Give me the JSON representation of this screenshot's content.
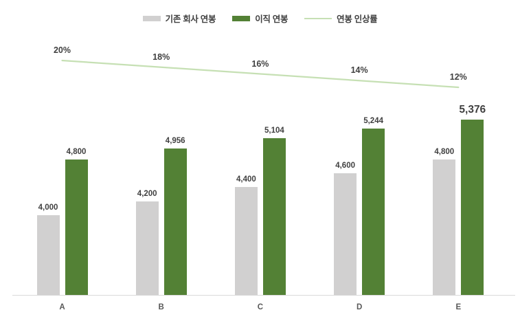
{
  "colors": {
    "current_salary_bar": "#d1d0d0",
    "new_salary_bar": "#538135",
    "increase_line": "#c6e0b4",
    "text": "#404040",
    "category_text": "#595959",
    "axis_line": "#d9d9d9",
    "background": "#ffffff"
  },
  "legend": {
    "position": "top",
    "items": [
      {
        "label": "기존 회사 연봉",
        "swatch": "bar",
        "color": "#d1d0d0"
      },
      {
        "label": "이직 연봉",
        "swatch": "bar",
        "color": "#538135"
      },
      {
        "label": "연봉 인상률",
        "swatch": "line",
        "color": "#c6e0b4"
      }
    ]
  },
  "chart_data": {
    "type": "bar",
    "title": "",
    "xlabel": "",
    "ylabel": "",
    "categories": [
      "A",
      "B",
      "C",
      "D",
      "E"
    ],
    "series": [
      {
        "name": "기존 회사 연봉",
        "type": "bar",
        "color": "#d1d0d0",
        "values": [
          4000,
          4200,
          4400,
          4600,
          4800
        ],
        "labels": [
          "4,000",
          "4,200",
          "4,400",
          "4,600",
          "4,800"
        ]
      },
      {
        "name": "이직 연봉",
        "type": "bar",
        "color": "#538135",
        "values": [
          4800,
          4956,
          5104,
          5244,
          5376
        ],
        "labels": [
          "4,800",
          "4,956",
          "5,104",
          "5,244",
          "5,376"
        ],
        "emphasized_label_index": 4
      },
      {
        "name": "연봉 인상률",
        "type": "line",
        "axis": "secondary",
        "color": "#c6e0b4",
        "values": [
          20,
          18,
          16,
          14,
          12
        ],
        "labels": [
          "20%",
          "18%",
          "16%",
          "14%",
          "12%"
        ]
      }
    ],
    "value_axis_visible": false,
    "value_axis_effective_min": 2844,
    "secondary_axis_visible": false,
    "gridlines": false,
    "legend_position": "top"
  }
}
